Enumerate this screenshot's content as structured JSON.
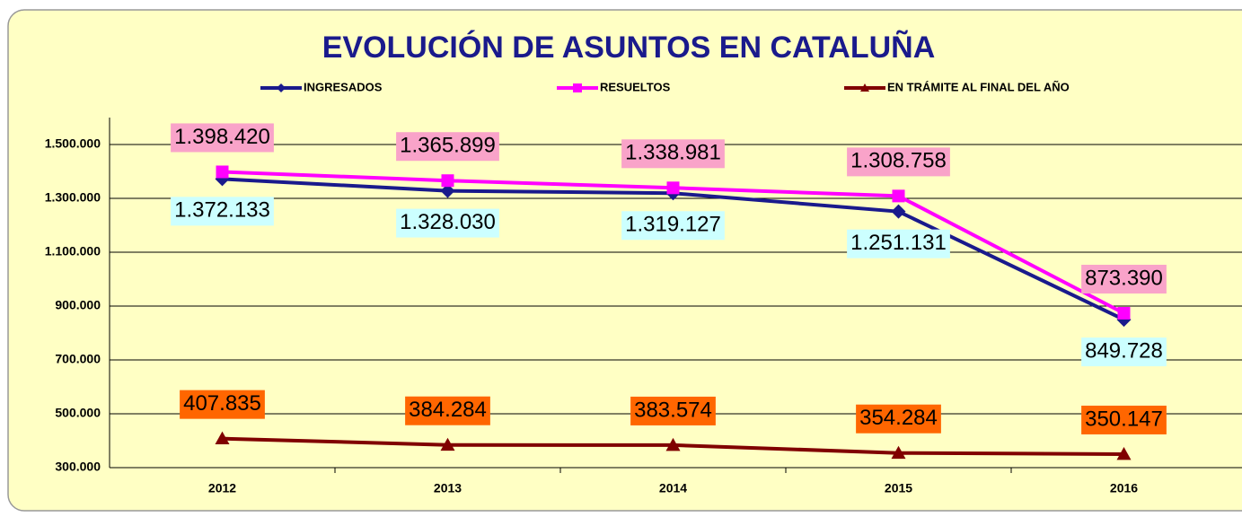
{
  "chart_data": {
    "type": "line",
    "title": "EVOLUCIÓN DE ASUNTOS EN CATALUÑA",
    "categories": [
      "2012",
      "2013",
      "2014",
      "2015",
      "2016"
    ],
    "series": [
      {
        "name": "INGRESADOS",
        "color": "#1a1a8c",
        "marker": "diamond",
        "label_position": "below",
        "label_background": "#ccffff",
        "values": [
          1372133,
          1328030,
          1319127,
          1251131,
          849728
        ],
        "value_labels": [
          "1.372.133",
          "1.328.030",
          "1.319.127",
          "1.251.131",
          "849.728"
        ]
      },
      {
        "name": "RESUELTOS",
        "color": "#ff00ff",
        "marker": "square",
        "label_position": "above",
        "label_background": "#f9a3c9",
        "values": [
          1398420,
          1365899,
          1338981,
          1308758,
          873390
        ],
        "value_labels": [
          "1.398.420",
          "1.365.899",
          "1.338.981",
          "1.308.758",
          "873.390"
        ]
      },
      {
        "name": "EN TRÁMITE AL FINAL DEL AÑO",
        "color": "#800000",
        "marker": "triangle",
        "label_position": "above",
        "label_background": "#ff6600",
        "values": [
          407835,
          384284,
          383574,
          354284,
          350147
        ],
        "value_labels": [
          "407.835",
          "384.284",
          "383.574",
          "354.284",
          "350.147"
        ]
      }
    ],
    "ylim": [
      300000,
      1600000
    ],
    "yticks": [
      {
        "value": 300000,
        "label": "300.000"
      },
      {
        "value": 500000,
        "label": "500.000"
      },
      {
        "value": 700000,
        "label": "700.000"
      },
      {
        "value": 900000,
        "label": "900.000"
      },
      {
        "value": 1100000,
        "label": "1.100.000"
      },
      {
        "value": 1300000,
        "label": "1.300.000"
      },
      {
        "value": 1500000,
        "label": "1.500.000"
      }
    ],
    "grid": true,
    "legend": "top"
  }
}
